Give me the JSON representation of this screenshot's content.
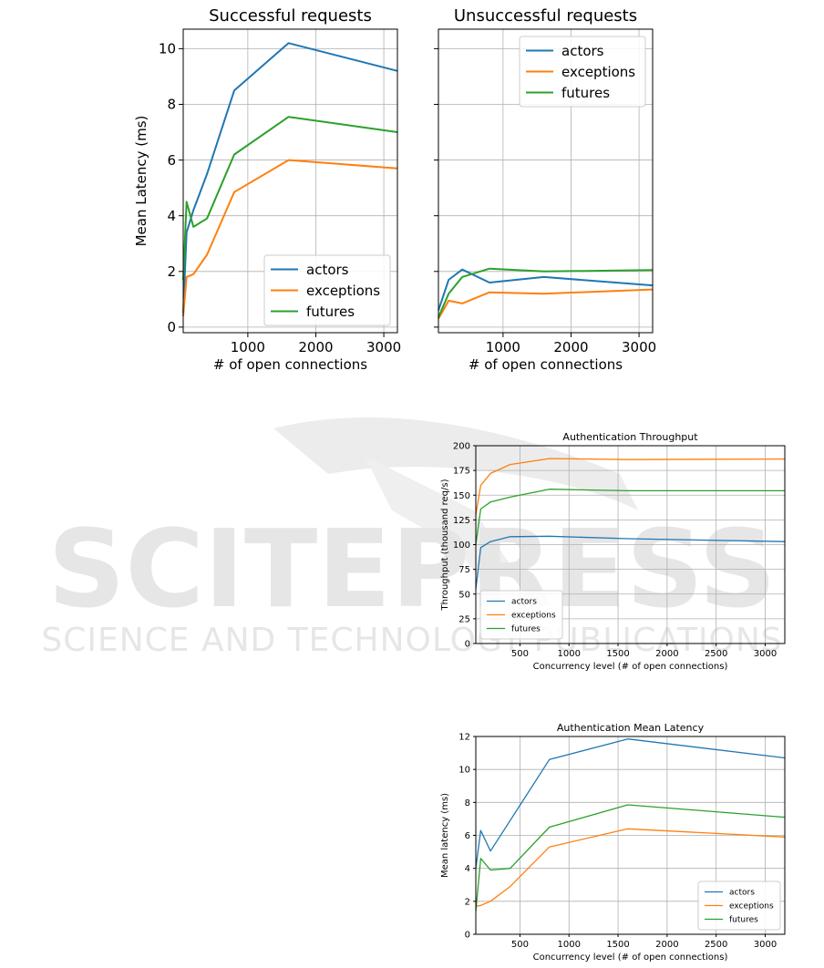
{
  "watermark": {
    "big": "SCITEPRESS",
    "small": "SCIENCE AND TECHNOLOGY PUBLICATIONS",
    "color": "#e4e4e4"
  },
  "colors": {
    "actors": "#1f77b4",
    "exceptions": "#ff7f0e",
    "futures": "#2ca02c"
  },
  "chart_data": [
    {
      "id": "succ",
      "type": "line",
      "title": "Successful requests",
      "xlabel": "# of open connections",
      "ylabel": "Mean Latency (ms)",
      "xlim": [
        50,
        3200
      ],
      "ylim": [
        -0.2,
        10.7
      ],
      "xticks": [
        1000,
        2000,
        3000
      ],
      "yticks": [
        0,
        2,
        4,
        6,
        8,
        10
      ],
      "show_yticklabels": true,
      "grid": true,
      "legend": "lower-right",
      "series": [
        {
          "name": "actors",
          "color": "#1f77b4",
          "x": [
            50,
            100,
            200,
            400,
            800,
            1600,
            3200
          ],
          "y": [
            0.5,
            3.4,
            4.2,
            5.5,
            8.5,
            10.2,
            9.2
          ]
        },
        {
          "name": "exceptions",
          "color": "#ff7f0e",
          "x": [
            50,
            100,
            200,
            400,
            800,
            1600,
            3200
          ],
          "y": [
            0.4,
            1.8,
            1.9,
            2.6,
            4.85,
            6.0,
            5.7
          ]
        },
        {
          "name": "futures",
          "color": "#2ca02c",
          "x": [
            50,
            100,
            200,
            400,
            800,
            1600,
            3200
          ],
          "y": [
            1.7,
            4.5,
            3.6,
            3.9,
            6.2,
            7.55,
            7.0
          ]
        }
      ]
    },
    {
      "id": "unsucc",
      "type": "line",
      "title": "Unsuccessful requests",
      "xlabel": "# of open connections",
      "ylabel": "",
      "xlim": [
        50,
        3200
      ],
      "ylim": [
        -0.2,
        10.7
      ],
      "xticks": [
        1000,
        2000,
        3000
      ],
      "yticks": [
        0,
        2,
        4,
        6,
        8,
        10
      ],
      "show_yticklabels": false,
      "grid": true,
      "legend": "upper-right",
      "series": [
        {
          "name": "actors",
          "color": "#1f77b4",
          "x": [
            50,
            200,
            400,
            800,
            1600,
            3200
          ],
          "y": [
            0.6,
            1.7,
            2.07,
            1.6,
            1.8,
            1.5
          ]
        },
        {
          "name": "exceptions",
          "color": "#ff7f0e",
          "x": [
            50,
            200,
            400,
            800,
            1600,
            3200
          ],
          "y": [
            0.3,
            0.95,
            0.85,
            1.25,
            1.2,
            1.35
          ]
        },
        {
          "name": "futures",
          "color": "#2ca02c",
          "x": [
            50,
            200,
            400,
            800,
            1600,
            3200
          ],
          "y": [
            0.35,
            1.2,
            1.8,
            2.1,
            2.0,
            2.05
          ]
        }
      ]
    },
    {
      "id": "thr",
      "type": "line",
      "title": "Authentication Throughput",
      "xlabel": "Concurrency level (# of open connections)",
      "ylabel": "Throughput (thousand req/s)",
      "xlim": [
        50,
        3200
      ],
      "ylim": [
        0,
        200
      ],
      "xticks": [
        500,
        1000,
        1500,
        2000,
        2500,
        3000
      ],
      "yticks": [
        0,
        25,
        50,
        75,
        100,
        125,
        150,
        175,
        200
      ],
      "show_yticklabels": true,
      "grid": true,
      "legend": "lower-left",
      "series": [
        {
          "name": "actors",
          "color": "#1f77b4",
          "x": [
            50,
            100,
            200,
            400,
            800,
            1600,
            3200
          ],
          "y": [
            55,
            97,
            103,
            108,
            108.5,
            106,
            103
          ]
        },
        {
          "name": "exceptions",
          "color": "#ff7f0e",
          "x": [
            50,
            100,
            200,
            400,
            800,
            1600,
            3200
          ],
          "y": [
            130,
            160,
            172,
            181,
            187,
            186,
            186.5
          ]
        },
        {
          "name": "futures",
          "color": "#2ca02c",
          "x": [
            50,
            100,
            200,
            400,
            800,
            1600,
            3200
          ],
          "y": [
            100,
            136,
            143,
            148,
            156,
            154.5,
            154.5
          ]
        }
      ]
    },
    {
      "id": "lat",
      "type": "line",
      "title": "Authentication Mean Latency",
      "xlabel": "Concurrency level (# of open connections)",
      "ylabel": "Mean latency (ms)",
      "xlim": [
        50,
        3200
      ],
      "ylim": [
        0,
        12
      ],
      "xticks": [
        500,
        1000,
        1500,
        2000,
        2500,
        3000
      ],
      "yticks": [
        0,
        2,
        4,
        6,
        8,
        10,
        12
      ],
      "show_yticklabels": true,
      "grid": true,
      "legend": "lower-right",
      "series": [
        {
          "name": "actors",
          "color": "#1f77b4",
          "x": [
            50,
            100,
            200,
            400,
            800,
            1600,
            3200
          ],
          "y": [
            4.0,
            6.3,
            5.05,
            6.9,
            10.6,
            11.85,
            10.7
          ]
        },
        {
          "name": "exceptions",
          "color": "#ff7f0e",
          "x": [
            50,
            100,
            200,
            400,
            800,
            1600,
            3200
          ],
          "y": [
            1.7,
            1.75,
            2.0,
            2.9,
            5.3,
            6.4,
            5.9
          ]
        },
        {
          "name": "futures",
          "color": "#2ca02c",
          "x": [
            50,
            100,
            200,
            400,
            800,
            1600,
            3200
          ],
          "y": [
            1.4,
            4.6,
            3.9,
            4.0,
            6.5,
            7.85,
            7.1
          ]
        }
      ]
    }
  ]
}
